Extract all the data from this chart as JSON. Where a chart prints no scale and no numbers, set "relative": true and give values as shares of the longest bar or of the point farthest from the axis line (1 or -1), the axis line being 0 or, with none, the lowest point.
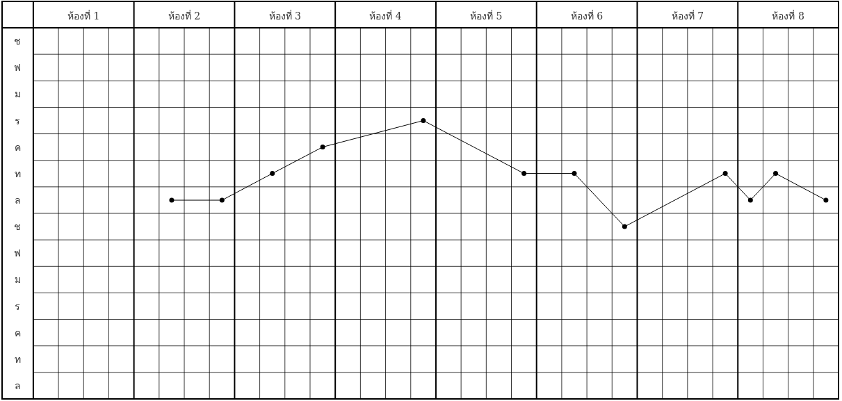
{
  "chart_data": {
    "type": "line",
    "relative": true,
    "marker": "circle",
    "line_style": "solid",
    "grid": true,
    "tick_labels": "x",
    "x": [
      1.875,
      2.375,
      2.875,
      3.375,
      4.375,
      5.375,
      5.875,
      6.375,
      7.375,
      7.625,
      7.875,
      8.375
    ],
    "series": [
      {
        "color": "#000000",
        "values": [
          0.714,
          0.714,
          0.81,
          0.905,
          1,
          0.81,
          0.81,
          0.619,
          0.81,
          0.714,
          0.81,
          0.714
        ]
      }
    ],
    "xlim": [
      0.19,
      8.5
    ],
    "xticks": [
      {
        "value": 1,
        "label": "ห้องที่ 1"
      },
      {
        "value": 2,
        "label": "ห้องที่ 2"
      },
      {
        "value": 3,
        "label": "ห้องที่ 3"
      },
      {
        "value": 4,
        "label": "ห้องที่ 4"
      },
      {
        "value": 5,
        "label": "ห้องที่ 5"
      },
      {
        "value": 6,
        "label": "ห้องที่ 6"
      },
      {
        "value": 7,
        "label": "ห้องที่ 7"
      },
      {
        "value": 8,
        "label": "ห้องที่ 8"
      }
    ],
    "annotations": [
      "ช",
      "ฟ",
      "ม",
      "ร",
      "ค",
      "ท",
      "ล",
      "ช",
      "ฟ",
      "ม",
      "ร",
      "ค",
      "ท",
      "ล"
    ]
  }
}
